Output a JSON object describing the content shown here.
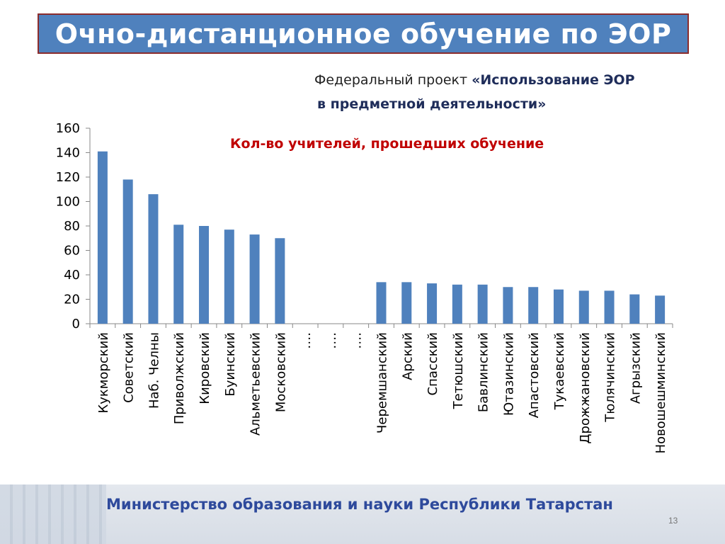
{
  "title": "Очно-дистанционное обучение по ЭОР",
  "subtitle": {
    "prefix": "Федеральный проект ",
    "bold_line1": "«Использование ЭОР",
    "bold_line2": "в предметной деятельности»"
  },
  "footer": {
    "text": "Министерство образования и науки Республики Татарстан",
    "page": "13"
  },
  "colors": {
    "bar": "#4f81bd",
    "title_bg": "#4f81bd",
    "chart_title": "#c00000"
  },
  "chart_data": {
    "type": "bar",
    "title": "Кол-во учителей, прошедших обучение",
    "categories": [
      "Кукморский",
      "Советский",
      "Наб. Челны",
      "Приволжский",
      "Кировский",
      "Буинский",
      "Альметьевский",
      "Московский",
      "….",
      "….",
      "….",
      "Черемшанский",
      "Арский",
      "Спасский",
      "Тетюшский",
      "Бавлинский",
      "Ютазинский",
      "Апастовский",
      "Тукаевский",
      "Дрожжановский",
      "Тюлячинский",
      "Агрызский",
      "Новошешминский"
    ],
    "values": [
      141,
      118,
      106,
      81,
      80,
      77,
      73,
      70,
      0,
      0,
      0,
      34,
      34,
      33,
      32,
      32,
      30,
      30,
      28,
      27,
      27,
      24,
      23
    ],
    "ylim": [
      0,
      160
    ],
    "yticks": [
      0,
      20,
      40,
      60,
      80,
      100,
      120,
      140,
      160
    ],
    "grid": false
  }
}
